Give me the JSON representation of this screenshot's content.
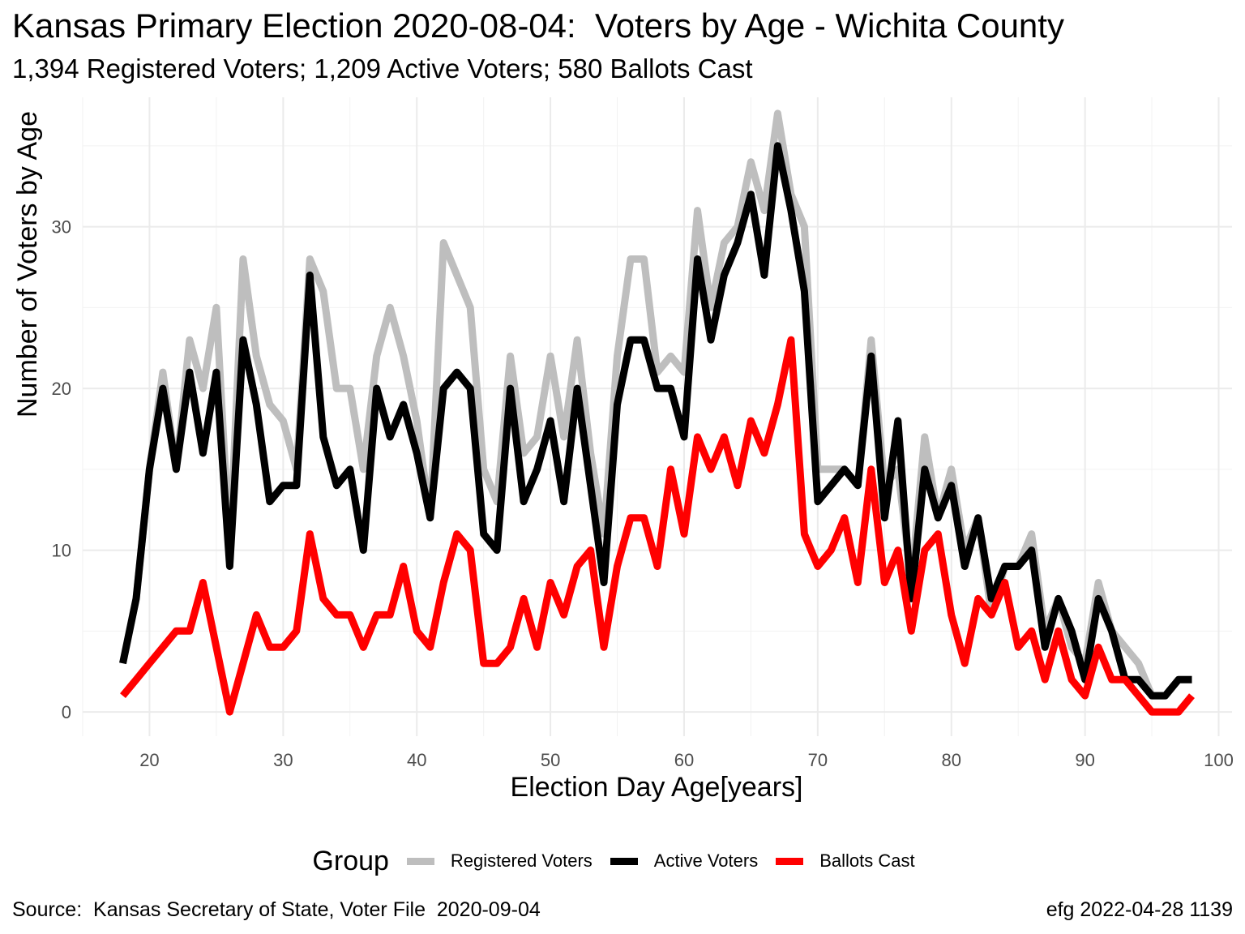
{
  "title": "Kansas Primary Election 2020-08-04:  Voters by Age - Wichita County",
  "subtitle": "1,394 Registered Voters; 1,209 Active Voters; 580 Ballots Cast",
  "footer": {
    "source": "Source:  Kansas Secretary of State, Voter File  2020-09-04",
    "credit": "efg 2022-04-28 1139"
  },
  "legend": {
    "title": "Group"
  },
  "chart_data": {
    "type": "line",
    "title": "Kansas Primary Election 2020-08-04:  Voters by Age - Wichita County",
    "subtitle": "1,394 Registered Voters; 1,209 Active Voters; 580 Ballots Cast",
    "xlabel": "Election Day Age[years]",
    "ylabel": "Number of Voters by Age",
    "xlim": [
      15,
      101
    ],
    "ylim": [
      -1.5,
      38
    ],
    "x_ticks": [
      20,
      30,
      40,
      50,
      60,
      70,
      80,
      90,
      100
    ],
    "y_ticks": [
      0,
      10,
      20,
      30
    ],
    "grid": true,
    "legend_position": "bottom",
    "x": [
      18,
      19,
      20,
      21,
      22,
      23,
      24,
      25,
      26,
      27,
      28,
      29,
      30,
      31,
      32,
      33,
      34,
      35,
      36,
      37,
      38,
      39,
      40,
      41,
      42,
      43,
      44,
      45,
      46,
      47,
      48,
      49,
      50,
      51,
      52,
      53,
      54,
      55,
      56,
      57,
      58,
      59,
      60,
      61,
      62,
      63,
      64,
      65,
      66,
      67,
      68,
      69,
      70,
      71,
      72,
      73,
      74,
      75,
      76,
      77,
      78,
      79,
      80,
      81,
      82,
      83,
      84,
      85,
      86,
      87,
      88,
      89,
      90,
      91,
      92,
      93,
      94,
      95,
      96,
      97,
      98
    ],
    "series": [
      {
        "name": "Registered Voters",
        "color": "#bebebe",
        "values": [
          3,
          7,
          15,
          21,
          15,
          23,
          20,
          25,
          10,
          28,
          22,
          19,
          18,
          15,
          28,
          26,
          20,
          20,
          15,
          22,
          25,
          22,
          18,
          12,
          29,
          27,
          25,
          15,
          13,
          22,
          16,
          17,
          22,
          17,
          23,
          16,
          11,
          22,
          28,
          28,
          21,
          22,
          21,
          31,
          25,
          29,
          30,
          34,
          31,
          37,
          32,
          30,
          15,
          15,
          15,
          14,
          23,
          14,
          15,
          8,
          17,
          12,
          15,
          10,
          12,
          6,
          9,
          9,
          11,
          5,
          7,
          4,
          3,
          8,
          5,
          4,
          3,
          1,
          1,
          2,
          2
        ]
      },
      {
        "name": "Active Voters",
        "color": "#000000",
        "values": [
          3,
          7,
          15,
          20,
          15,
          21,
          16,
          21,
          9,
          23,
          19,
          13,
          14,
          14,
          27,
          17,
          14,
          15,
          10,
          20,
          17,
          19,
          16,
          12,
          20,
          21,
          20,
          11,
          10,
          20,
          13,
          15,
          18,
          13,
          20,
          14,
          8,
          19,
          23,
          23,
          20,
          20,
          17,
          28,
          23,
          27,
          29,
          32,
          27,
          35,
          31,
          26,
          13,
          14,
          15,
          14,
          22,
          12,
          18,
          7,
          15,
          12,
          14,
          9,
          12,
          7,
          9,
          9,
          10,
          4,
          7,
          5,
          2,
          7,
          5,
          2,
          2,
          1,
          1,
          2,
          2
        ]
      },
      {
        "name": "Ballots Cast",
        "color": "#ff0000",
        "values": [
          1,
          2,
          3,
          4,
          5,
          5,
          8,
          4,
          0,
          3,
          6,
          4,
          4,
          5,
          11,
          7,
          6,
          6,
          4,
          6,
          6,
          9,
          5,
          4,
          8,
          11,
          10,
          3,
          3,
          4,
          7,
          4,
          8,
          6,
          9,
          10,
          4,
          9,
          12,
          12,
          9,
          15,
          11,
          17,
          15,
          17,
          14,
          18,
          16,
          19,
          23,
          11,
          9,
          10,
          12,
          8,
          15,
          8,
          10,
          5,
          10,
          11,
          6,
          3,
          7,
          6,
          8,
          4,
          5,
          2,
          5,
          2,
          1,
          4,
          2,
          2,
          1,
          0,
          0,
          0,
          1
        ]
      }
    ]
  }
}
